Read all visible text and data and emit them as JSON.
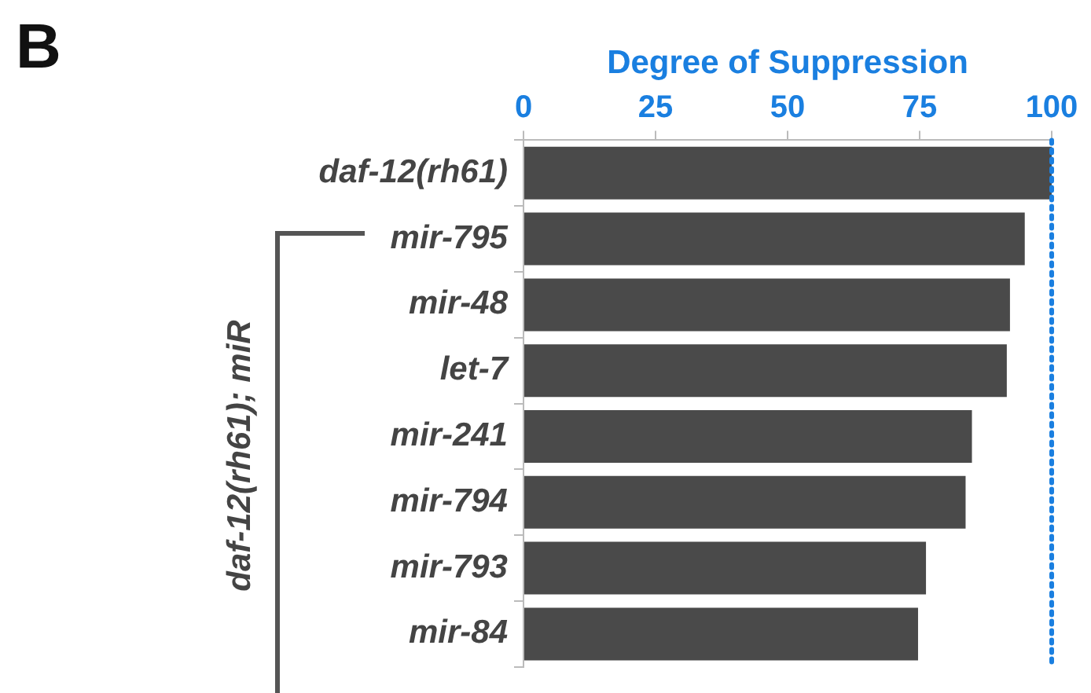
{
  "chart_data": {
    "type": "bar",
    "orientation": "horizontal",
    "xlabel": "Degree of Suppression",
    "ylabel": "daf-12(rh61); miR",
    "annotations": [
      "B"
    ],
    "categories": [
      "daf-12(rh61)",
      "mir-795",
      "mir-48",
      "let-7",
      "mir-241",
      "mir-794",
      "mir-793",
      "mir-84"
    ],
    "values": [
      100,
      94.9,
      92.1,
      91.5,
      84.9,
      83.7,
      76.2,
      74.7
    ],
    "color": "#4a4a4a",
    "xlim": [
      0,
      100
    ],
    "xticks": [
      0,
      25,
      50,
      75,
      100
    ],
    "ref_lines": [
      {
        "axis": "x",
        "value": 100,
        "color": "#1a7fe0",
        "line_style": "dotted"
      }
    ],
    "grid": false,
    "legend": false
  }
}
